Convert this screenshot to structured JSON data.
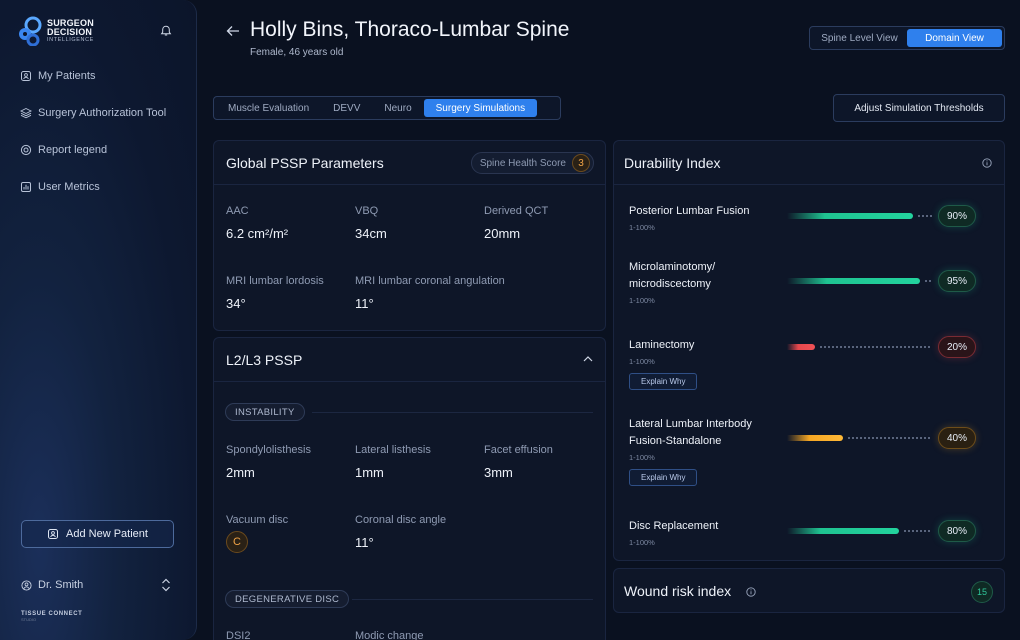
{
  "colors": {
    "accent": "#2f80ed",
    "good": "#1fc391",
    "bad": "#e5484d",
    "warn": "#f5a623"
  },
  "sidebar": {
    "logo": {
      "line1": "SURGEON",
      "line2": "DECISION",
      "line3": "INTELLIGENCE"
    },
    "notification_icon": "bell-icon",
    "items": [
      {
        "label": "My Patients",
        "icon": "id-card-icon"
      },
      {
        "label": "Surgery Authorization Tool",
        "icon": "layers-icon"
      },
      {
        "label": "Report legend",
        "icon": "target-icon"
      },
      {
        "label": "User Metrics",
        "icon": "bar-chart-icon"
      }
    ],
    "add_patient": "Add New Patient",
    "user": "Dr. Smith",
    "footer": {
      "line1": "TISSUE CONNECT",
      "line2": "STUDIO"
    }
  },
  "header": {
    "title": "Holly Bins, Thoraco-Lumbar Spine",
    "subtitle": "Female, 46 years old",
    "view_options": [
      "Spine Level View",
      "Domain View"
    ],
    "active_view": "Domain View",
    "tabs": [
      "Muscle Evaluation",
      "DEVV",
      "Neuro",
      "Surgery Simulations"
    ],
    "active_tab": "Surgery Simulations",
    "adjust_button": "Adjust Simulation Thresholds"
  },
  "global_pssp": {
    "title": "Global PSSP Parameters",
    "score_label": "Spine Health Score",
    "score_value": "3",
    "params": [
      {
        "label": "AAC",
        "value": "6.2 cm²/m²"
      },
      {
        "label": "VBQ",
        "value": "34cm"
      },
      {
        "label": "Derived QCT",
        "value": "20mm"
      },
      {
        "label": "MRI lumbar lordosis",
        "value": "34°"
      },
      {
        "label": "MRI lumbar coronal angulation",
        "value": "11°"
      }
    ]
  },
  "l2l3": {
    "title": "L2/L3 PSSP",
    "instability_tag": "INSTABILITY",
    "instability": [
      {
        "label": "Spondylolisthesis",
        "value": "2mm"
      },
      {
        "label": "Lateral listhesis",
        "value": "1mm"
      },
      {
        "label": "Facet effusion",
        "value": "3mm"
      },
      {
        "label": "Vacuum disc",
        "value": "C"
      },
      {
        "label": "Coronal disc angle",
        "value": "11°"
      }
    ],
    "degenerative_tag": "DEGENERATIVE DISC",
    "degenerative": [
      {
        "label": "DSI2"
      },
      {
        "label": "Modic change"
      }
    ]
  },
  "durability": {
    "title": "Durability Index",
    "explain_label": "Explain Why",
    "items": [
      {
        "name": "Posterior Lumbar Fusion",
        "range": "1-100%",
        "value": 90,
        "pct": "90%",
        "status": "good",
        "explain": false
      },
      {
        "name": "Microlaminotomy/ microdiscectomy",
        "range": "1-100%",
        "value": 95,
        "pct": "95%",
        "status": "good",
        "explain": false
      },
      {
        "name": "Laminectomy",
        "range": "1-100%",
        "value": 20,
        "pct": "20%",
        "status": "bad",
        "explain": true
      },
      {
        "name": "Lateral Lumbar Interbody Fusion-Standalone",
        "range": "1-100%",
        "value": 40,
        "pct": "40%",
        "status": "warn",
        "explain": true
      },
      {
        "name": "Disc Replacement",
        "range": "1-100%",
        "value": 80,
        "pct": "80%",
        "status": "good",
        "explain": false
      }
    ]
  },
  "wound": {
    "title": "Wound risk index",
    "value": "15"
  }
}
